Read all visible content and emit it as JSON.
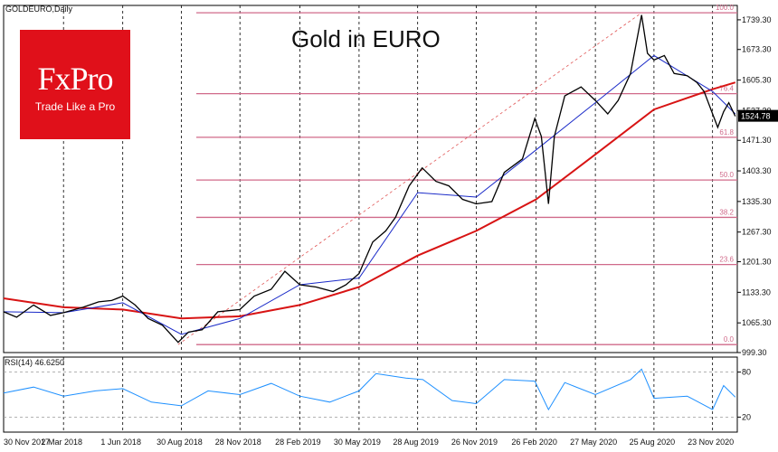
{
  "chart_data": {
    "type": "line",
    "title": "Gold in EURO",
    "symbol_label": "GOLDEURO,Daily",
    "subplot_label": "RSI(14) 46.6250",
    "current_price_label": "1524.78",
    "price_axis_ticks": [
      "1739.30",
      "1673.30",
      "1605.30",
      "1537.30",
      "1471.30",
      "1403.30",
      "1335.30",
      "1267.30",
      "1201.30",
      "1133.30",
      "1065.30",
      "999.30"
    ],
    "rsi_axis_ticks": [
      "80",
      "20"
    ],
    "date_ticks": [
      "30 Nov 2017",
      "2 Mar 2018",
      "1 Jun 2018",
      "30 Aug 2018",
      "28 Nov 2018",
      "28 Feb 2019",
      "30 May 2019",
      "28 Aug 2019",
      "26 Nov 2019",
      "26 Feb 2020",
      "27 May 2020",
      "25 Aug 2020",
      "23 Nov 2020"
    ],
    "fib_levels": [
      {
        "label": "100.0",
        "price": 1755
      },
      {
        "label": "76.4",
        "price": 1575
      },
      {
        "label": "61.8",
        "price": 1478
      },
      {
        "label": "50.0",
        "price": 1383
      },
      {
        "label": "38.2",
        "price": 1300
      },
      {
        "label": "23.6",
        "price": 1195
      },
      {
        "label": "0.0",
        "price": 1017
      }
    ],
    "price_series": [
      {
        "date": "2017-11-30",
        "value": 1090
      },
      {
        "date": "2017-12-20",
        "value": 1078
      },
      {
        "date": "2018-01-15",
        "value": 1105
      },
      {
        "date": "2018-02-10",
        "value": 1082
      },
      {
        "date": "2018-03-02",
        "value": 1088
      },
      {
        "date": "2018-04-01",
        "value": 1100
      },
      {
        "date": "2018-04-25",
        "value": 1112
      },
      {
        "date": "2018-05-15",
        "value": 1115
      },
      {
        "date": "2018-06-01",
        "value": 1125
      },
      {
        "date": "2018-06-20",
        "value": 1105
      },
      {
        "date": "2018-07-10",
        "value": 1075
      },
      {
        "date": "2018-08-01",
        "value": 1060
      },
      {
        "date": "2018-08-25",
        "value": 1022
      },
      {
        "date": "2018-09-10",
        "value": 1045
      },
      {
        "date": "2018-10-01",
        "value": 1050
      },
      {
        "date": "2018-10-25",
        "value": 1090
      },
      {
        "date": "2018-11-28",
        "value": 1095
      },
      {
        "date": "2018-12-20",
        "value": 1125
      },
      {
        "date": "2019-01-15",
        "value": 1140
      },
      {
        "date": "2019-02-05",
        "value": 1180
      },
      {
        "date": "2019-02-28",
        "value": 1150
      },
      {
        "date": "2019-03-25",
        "value": 1145
      },
      {
        "date": "2019-04-20",
        "value": 1135
      },
      {
        "date": "2019-05-10",
        "value": 1150
      },
      {
        "date": "2019-05-30",
        "value": 1175
      },
      {
        "date": "2019-06-20",
        "value": 1245
      },
      {
        "date": "2019-07-10",
        "value": 1270
      },
      {
        "date": "2019-07-25",
        "value": 1300
      },
      {
        "date": "2019-08-15",
        "value": 1370
      },
      {
        "date": "2019-09-04",
        "value": 1410
      },
      {
        "date": "2019-09-25",
        "value": 1380
      },
      {
        "date": "2019-10-15",
        "value": 1370
      },
      {
        "date": "2019-11-05",
        "value": 1340
      },
      {
        "date": "2019-11-26",
        "value": 1330
      },
      {
        "date": "2019-12-20",
        "value": 1335
      },
      {
        "date": "2020-01-08",
        "value": 1400
      },
      {
        "date": "2020-02-05",
        "value": 1430
      },
      {
        "date": "2020-02-24",
        "value": 1520
      },
      {
        "date": "2020-03-05",
        "value": 1480
      },
      {
        "date": "2020-03-16",
        "value": 1330
      },
      {
        "date": "2020-03-25",
        "value": 1480
      },
      {
        "date": "2020-04-10",
        "value": 1570
      },
      {
        "date": "2020-05-05",
        "value": 1590
      },
      {
        "date": "2020-05-27",
        "value": 1560
      },
      {
        "date": "2020-06-15",
        "value": 1530
      },
      {
        "date": "2020-07-01",
        "value": 1560
      },
      {
        "date": "2020-07-20",
        "value": 1620
      },
      {
        "date": "2020-08-06",
        "value": 1750
      },
      {
        "date": "2020-08-15",
        "value": 1665
      },
      {
        "date": "2020-08-25",
        "value": 1650
      },
      {
        "date": "2020-09-10",
        "value": 1660
      },
      {
        "date": "2020-09-25",
        "value": 1620
      },
      {
        "date": "2020-10-15",
        "value": 1615
      },
      {
        "date": "2020-10-30",
        "value": 1600
      },
      {
        "date": "2020-11-10",
        "value": 1580
      },
      {
        "date": "2020-11-23",
        "value": 1530
      },
      {
        "date": "2020-12-01",
        "value": 1500
      },
      {
        "date": "2020-12-10",
        "value": 1535
      },
      {
        "date": "2020-12-18",
        "value": 1555
      },
      {
        "date": "2020-12-28",
        "value": 1524.78
      }
    ],
    "ma_fast": [
      {
        "date": "2017-11-30",
        "value": 1090
      },
      {
        "date": "2018-03-02",
        "value": 1088
      },
      {
        "date": "2018-06-01",
        "value": 1110
      },
      {
        "date": "2018-08-30",
        "value": 1040
      },
      {
        "date": "2018-11-28",
        "value": 1075
      },
      {
        "date": "2019-02-28",
        "value": 1150
      },
      {
        "date": "2019-05-30",
        "value": 1165
      },
      {
        "date": "2019-08-28",
        "value": 1355
      },
      {
        "date": "2019-11-26",
        "value": 1345
      },
      {
        "date": "2020-02-26",
        "value": 1450
      },
      {
        "date": "2020-05-27",
        "value": 1555
      },
      {
        "date": "2020-08-25",
        "value": 1660
      },
      {
        "date": "2020-11-23",
        "value": 1580
      },
      {
        "date": "2020-12-28",
        "value": 1530
      }
    ],
    "ma_slow": [
      {
        "date": "2017-11-30",
        "value": 1120
      },
      {
        "date": "2018-03-02",
        "value": 1100
      },
      {
        "date": "2018-06-01",
        "value": 1095
      },
      {
        "date": "2018-08-30",
        "value": 1075
      },
      {
        "date": "2018-11-28",
        "value": 1080
      },
      {
        "date": "2019-02-28",
        "value": 1105
      },
      {
        "date": "2019-05-30",
        "value": 1145
      },
      {
        "date": "2019-08-28",
        "value": 1215
      },
      {
        "date": "2019-11-26",
        "value": 1270
      },
      {
        "date": "2020-02-26",
        "value": 1340
      },
      {
        "date": "2020-05-27",
        "value": 1440
      },
      {
        "date": "2020-08-25",
        "value": 1540
      },
      {
        "date": "2020-11-23",
        "value": 1585
      },
      {
        "date": "2020-12-28",
        "value": 1600
      }
    ],
    "rsi_series": [
      {
        "date": "2017-11-30",
        "value": 52
      },
      {
        "date": "2018-01-15",
        "value": 60
      },
      {
        "date": "2018-03-02",
        "value": 48
      },
      {
        "date": "2018-04-20",
        "value": 55
      },
      {
        "date": "2018-06-01",
        "value": 58
      },
      {
        "date": "2018-07-15",
        "value": 40
      },
      {
        "date": "2018-08-30",
        "value": 35
      },
      {
        "date": "2018-10-10",
        "value": 55
      },
      {
        "date": "2018-11-28",
        "value": 50
      },
      {
        "date": "2019-01-15",
        "value": 65
      },
      {
        "date": "2019-02-28",
        "value": 48
      },
      {
        "date": "2019-04-15",
        "value": 40
      },
      {
        "date": "2019-05-30",
        "value": 55
      },
      {
        "date": "2019-06-25",
        "value": 78
      },
      {
        "date": "2019-08-10",
        "value": 72
      },
      {
        "date": "2019-09-05",
        "value": 70
      },
      {
        "date": "2019-10-20",
        "value": 42
      },
      {
        "date": "2019-11-26",
        "value": 38
      },
      {
        "date": "2020-01-08",
        "value": 70
      },
      {
        "date": "2020-02-24",
        "value": 68
      },
      {
        "date": "2020-03-16",
        "value": 30
      },
      {
        "date": "2020-04-10",
        "value": 66
      },
      {
        "date": "2020-05-27",
        "value": 50
      },
      {
        "date": "2020-07-20",
        "value": 70
      },
      {
        "date": "2020-08-06",
        "value": 84
      },
      {
        "date": "2020-08-25",
        "value": 45
      },
      {
        "date": "2020-10-15",
        "value": 48
      },
      {
        "date": "2020-11-23",
        "value": 30
      },
      {
        "date": "2020-12-10",
        "value": 62
      },
      {
        "date": "2020-12-28",
        "value": 46.625
      }
    ],
    "date_range": [
      "2017-11-30",
      "2020-12-31"
    ],
    "price_range": [
      999.3,
      1771.3
    ],
    "rsi_range": [
      0,
      100
    ],
    "grid": true,
    "colors": {
      "price": "#000000",
      "ma_fast": "#1a2ac8",
      "ma_slow": "#d81414",
      "fib": "#d06a8a",
      "rsi": "#1e90ff",
      "trend": "#e05555"
    }
  },
  "brand": {
    "logo": "FxPro",
    "tagline": "Trade Like a Pro",
    "color": "#e0101a"
  }
}
